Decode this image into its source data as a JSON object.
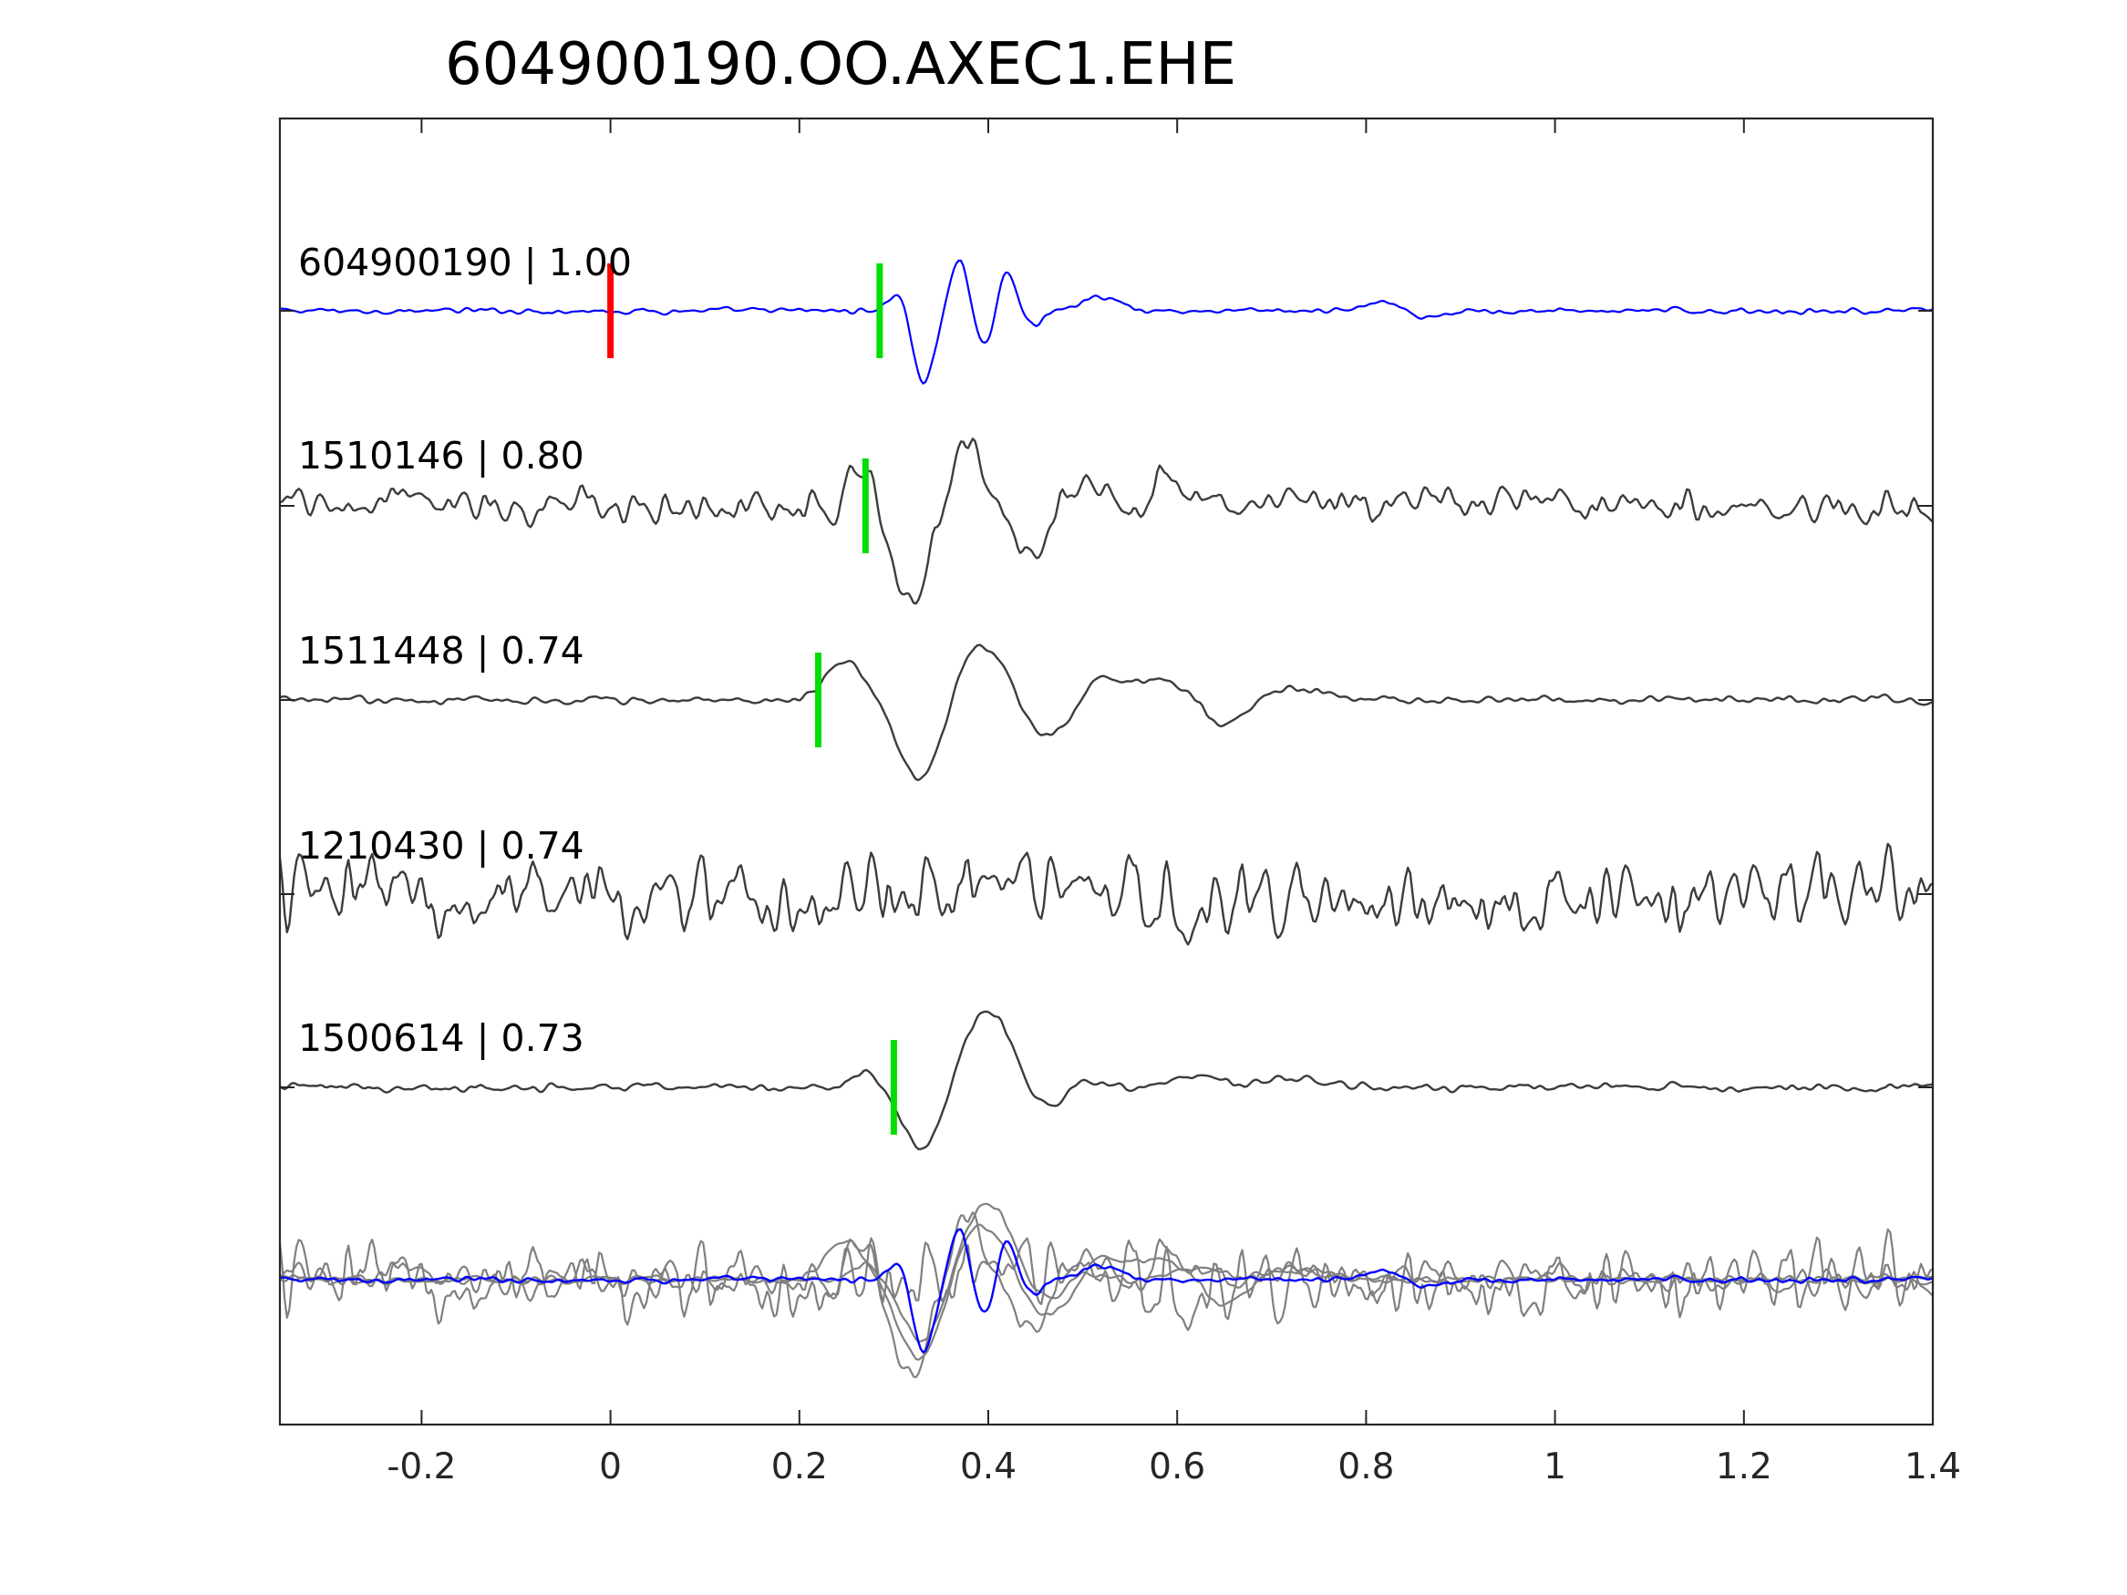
{
  "chart_data": {
    "type": "line",
    "title": "604900190.OO.AXEC1.EHE",
    "xlabel": "",
    "ylabel": "",
    "xlim": [
      -0.35,
      1.4
    ],
    "xticks": [
      -0.2,
      0,
      0.2,
      0.4,
      0.6,
      0.8,
      1,
      1.2,
      1.4
    ],
    "xtick_labels": [
      "-0.2",
      "0",
      "0.2",
      "0.4",
      "0.6",
      "0.8",
      "1",
      "1.2",
      "1.4"
    ],
    "grid": false,
    "colors": {
      "template": "#0000ff",
      "match": "#3c3c3c",
      "overlay_gray": "#808080",
      "reference_pick": "#ff0000",
      "phase_pick": "#00dd00",
      "axes": "#262626"
    },
    "series": [
      {
        "label": "604900190 | 1.00",
        "color": "#0000ff",
        "noise": 0.05,
        "pick": 0.285,
        "pick_color": "#00dd00",
        "reference_pick": 0.0,
        "events": [
          [
            0.31,
            0.38,
            0.012
          ],
          [
            0.33,
            -1.0,
            0.013
          ],
          [
            0.37,
            0.7,
            0.011
          ],
          [
            0.395,
            -0.55,
            0.011
          ],
          [
            0.42,
            0.55,
            0.011
          ],
          [
            0.445,
            -0.2,
            0.012
          ],
          [
            0.52,
            0.18,
            0.02
          ],
          [
            0.82,
            0.12,
            0.02
          ],
          [
            0.86,
            -0.12,
            0.02
          ]
        ]
      },
      {
        "label": "1510146 | 0.80",
        "color": "#3c3c3c",
        "noise": 0.3,
        "pick": 0.27,
        "pick_color": "#00dd00",
        "events": [
          [
            0.27,
            0.5,
            0.016
          ],
          [
            0.32,
            -1.1,
            0.022
          ],
          [
            0.375,
            0.9,
            0.02
          ],
          [
            0.44,
            -0.6,
            0.02
          ],
          [
            0.5,
            0.3,
            0.02
          ],
          [
            0.59,
            0.5,
            0.016
          ]
        ]
      },
      {
        "label": "1511448 | 0.74",
        "color": "#3c3c3c",
        "noise": 0.07,
        "pick": 0.22,
        "pick_color": "#00dd00",
        "events": [
          [
            0.25,
            0.5,
            0.022
          ],
          [
            0.33,
            -1.1,
            0.025
          ],
          [
            0.39,
            0.75,
            0.03
          ],
          [
            0.46,
            -0.5,
            0.025
          ],
          [
            0.52,
            0.3,
            0.02
          ],
          [
            0.58,
            0.28,
            0.025
          ],
          [
            0.65,
            -0.3,
            0.02
          ],
          [
            0.73,
            0.15,
            0.03
          ]
        ]
      },
      {
        "label": "1210430 | 0.74",
        "color": "#3c3c3c",
        "noise": 0.65,
        "events": []
      },
      {
        "label": "1500614 | 0.73",
        "color": "#3c3c3c",
        "noise": 0.07,
        "pick": 0.3,
        "pick_color": "#00dd00",
        "events": [
          [
            0.27,
            0.2,
            0.015
          ],
          [
            0.33,
            -0.8,
            0.02
          ],
          [
            0.4,
            1.0,
            0.025
          ],
          [
            0.46,
            -0.3,
            0.02
          ],
          [
            0.5,
            0.12,
            0.02
          ],
          [
            0.62,
            0.15,
            0.03
          ],
          [
            0.72,
            0.1,
            0.03
          ]
        ]
      }
    ]
  }
}
